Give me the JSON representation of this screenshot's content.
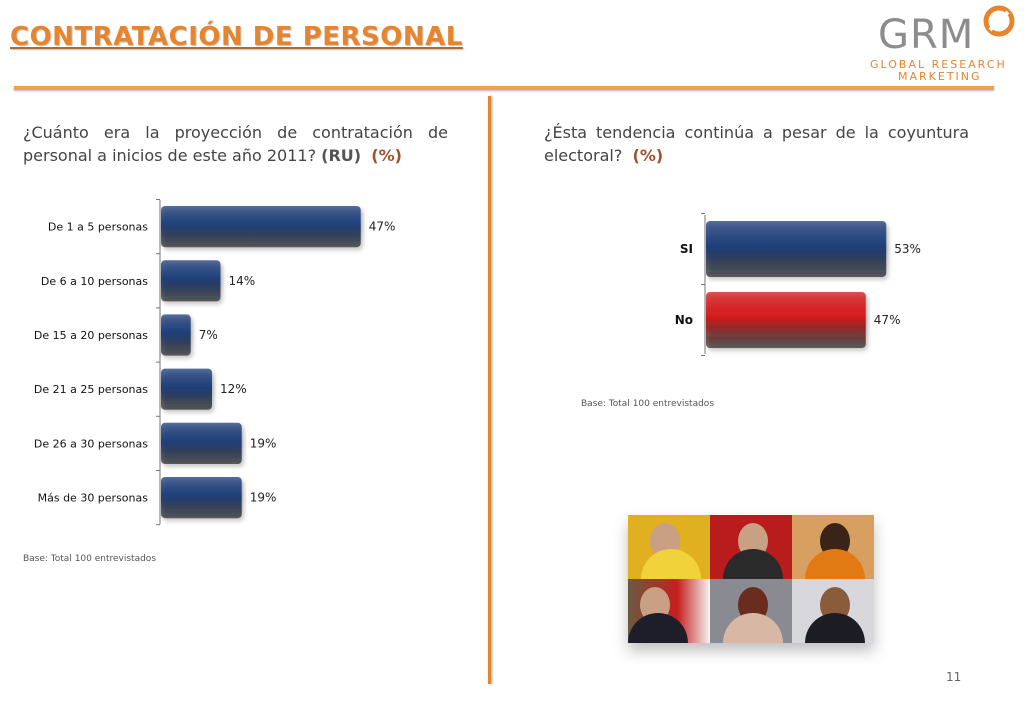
{
  "header": {
    "title": "CONTRATACIÓN DE PERSONAL",
    "logo_word": "GRM",
    "logo_sub1": "GLOBAL RESEARCH",
    "logo_sub2": "MARKETING"
  },
  "colors": {
    "accent": "#e8842c",
    "bar_blue": "#1f3f7a",
    "bar_red": "#d41a1a"
  },
  "left": {
    "question_text": "¿Cuánto era la proyección de contratación de personal a inicios de este año 2011? ",
    "question_bold": "(RU)",
    "question_pct": "(%)",
    "base": "Base: Total  100  entrevistados"
  },
  "right": {
    "question_text": "¿Ésta tendencia continúa a pesar de la coyuntura electoral? ",
    "question_pct": "(%)",
    "base": "Base: Total  100  entrevistados"
  },
  "chart_data": [
    {
      "type": "bar",
      "orientation": "horizontal",
      "categories": [
        "De 1 a 5 personas",
        "De 6 a 10 personas",
        "De 15 a 20 personas",
        "De 21 a 25 personas",
        "De 26 a 30 personas",
        "Más de 30 personas"
      ],
      "values": [
        47,
        14,
        7,
        12,
        19,
        19
      ],
      "value_suffix": "%",
      "xlim": [
        0,
        100
      ],
      "title": "",
      "xlabel": "",
      "ylabel": ""
    },
    {
      "type": "bar",
      "orientation": "horizontal",
      "categories": [
        "SI",
        "No"
      ],
      "values": [
        53,
        47
      ],
      "value_suffix": "%",
      "bar_colors": [
        "#1f3f7a",
        "#d41a1a"
      ],
      "xlim": [
        0,
        100
      ],
      "title": "",
      "xlabel": "",
      "ylabel": ""
    }
  ],
  "photos": {
    "tiles": [
      "photo-1",
      "photo-2",
      "photo-3",
      "photo-4",
      "photo-5",
      "photo-6"
    ]
  },
  "page_number": "11"
}
